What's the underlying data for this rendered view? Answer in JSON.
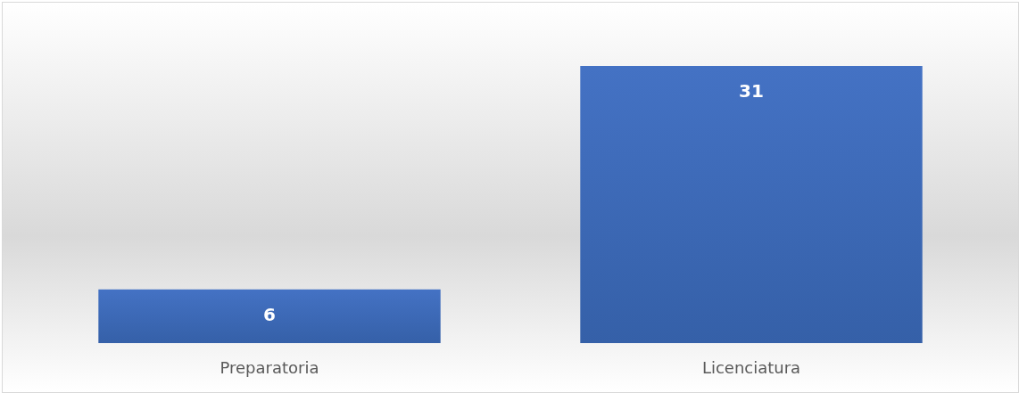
{
  "chart_data": {
    "type": "bar",
    "categories": [
      "Preparatoria",
      "Licenciatura"
    ],
    "values": [
      6,
      31
    ],
    "color": "#4472c4",
    "data_labels": true
  }
}
